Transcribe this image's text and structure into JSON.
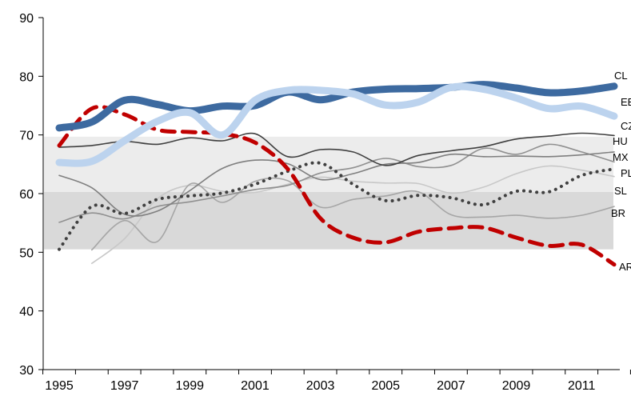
{
  "chart_data": {
    "type": "line",
    "title": "",
    "xlabel": "",
    "ylabel": "",
    "ylim": [
      30,
      90
    ],
    "y_ticks": [
      30,
      40,
      50,
      60,
      70,
      80,
      90
    ],
    "x_range": [
      1995,
      2012
    ],
    "x_tick_labels": [
      1995,
      1997,
      1999,
      2001,
      2003,
      2005,
      2007,
      2009,
      2011
    ],
    "grid": false,
    "bands": [
      {
        "from": 50.5,
        "to": 60.3,
        "color": "#d9d9d9"
      },
      {
        "from": 60.3,
        "to": 69.7,
        "color": "#ececec"
      }
    ],
    "series": [
      {
        "name": "CL",
        "color": "#3d6aa0",
        "style": "solid",
        "width": 9,
        "x": [
          1995,
          1996,
          1997,
          1998,
          1999,
          2000,
          2001,
          2002,
          2003,
          2004,
          2005,
          2006,
          2007,
          2008,
          2009,
          2010,
          2011,
          2012
        ],
        "y": [
          71.2,
          72.2,
          75.9,
          75.2,
          74.1,
          74.9,
          75.0,
          77.3,
          76.0,
          77.3,
          77.8,
          77.9,
          78.1,
          78.6,
          78.0,
          77.2,
          77.5,
          78.3
        ]
      },
      {
        "name": "EE",
        "color": "#bcd3ee",
        "style": "solid",
        "width": 9,
        "x": [
          1995,
          1996,
          1997,
          1998,
          1999,
          2000,
          2001,
          2002,
          2003,
          2004,
          2005,
          2006,
          2007,
          2008,
          2009,
          2010,
          2011,
          2012
        ],
        "y": [
          65.3,
          65.5,
          69.0,
          72.3,
          73.8,
          70.0,
          75.9,
          77.6,
          77.6,
          77.0,
          75.1,
          75.6,
          78.1,
          77.8,
          76.3,
          74.5,
          74.9,
          73.2
        ]
      },
      {
        "name": "AR",
        "color": "#c00000",
        "style": "dashed",
        "width": 5,
        "x": [
          1995,
          1996,
          1997,
          1998,
          1999,
          2000,
          2001,
          2002,
          2003,
          2004,
          2005,
          2006,
          2007,
          2008,
          2009,
          2010,
          2011,
          2012
        ],
        "y": [
          68.2,
          74.5,
          73.5,
          70.9,
          70.5,
          70.2,
          68.7,
          64.2,
          55.8,
          52.5,
          51.7,
          53.5,
          54.1,
          54.2,
          52.5,
          51.1,
          51.3,
          47.9
        ]
      },
      {
        "name": "SL",
        "color": "#404040",
        "style": "dotted",
        "width": 4,
        "x": [
          1995,
          1996,
          1997,
          1998,
          1999,
          2000,
          2001,
          2002,
          2003,
          2004,
          2005,
          2006,
          2007,
          2008,
          2009,
          2010,
          2011,
          2012
        ],
        "y": [
          50.5,
          57.8,
          56.6,
          59.0,
          59.6,
          60.1,
          61.6,
          63.8,
          65.2,
          61.6,
          58.8,
          59.7,
          59.3,
          58.1,
          60.4,
          60.3,
          63.1,
          64.2
        ]
      },
      {
        "name": "CZ",
        "color": "#404040",
        "style": "solid",
        "width": 1.6,
        "x": [
          1995,
          1996,
          1997,
          1998,
          1999,
          2000,
          2001,
          2002,
          2003,
          2004,
          2005,
          2006,
          2007,
          2008,
          2009,
          2010,
          2011,
          2012
        ],
        "y": [
          67.9,
          68.2,
          68.9,
          68.4,
          69.5,
          69.0,
          70.2,
          66.3,
          67.5,
          67.1,
          64.8,
          66.5,
          67.3,
          68.0,
          69.3,
          69.8,
          70.3,
          69.9
        ]
      },
      {
        "name": "HU",
        "color": "#7f7f7f",
        "style": "solid",
        "width": 1.6,
        "x": [
          1995,
          1996,
          1997,
          1998,
          1999,
          2000,
          2001,
          2002,
          2003,
          2004,
          2005,
          2006,
          2007,
          2008,
          2009,
          2010,
          2011,
          2012
        ],
        "y": [
          63.1,
          61.0,
          56.5,
          57.0,
          60.5,
          64.3,
          65.7,
          65.1,
          62.4,
          63.4,
          65.0,
          65.3,
          66.7,
          66.3,
          66.4,
          66.3,
          66.6,
          67.1
        ]
      },
      {
        "name": "MX",
        "color": "#909090",
        "style": "solid",
        "width": 1.6,
        "x": [
          1995,
          1996,
          1997,
          1998,
          1999,
          2000,
          2001,
          2002,
          2003,
          2004,
          2005,
          2006,
          2007,
          2008,
          2009,
          2010,
          2011,
          2012
        ],
        "y": [
          55.1,
          56.7,
          55.7,
          57.8,
          58.6,
          59.6,
          60.7,
          61.4,
          63.5,
          64.4,
          66.0,
          64.6,
          64.8,
          67.7,
          66.7,
          68.4,
          67.1,
          65.4
        ]
      },
      {
        "name": "PL",
        "color": "#c8c8c8",
        "style": "solid",
        "width": 1.6,
        "x": [
          1996,
          1997,
          1998,
          1999,
          2000,
          2001,
          2002,
          2003,
          2004,
          2005,
          2006,
          2007,
          2008,
          2009,
          2010,
          2011,
          2012
        ],
        "y": [
          48.1,
          52.3,
          59.1,
          61.4,
          60.4,
          60.2,
          61.6,
          62.8,
          62.1,
          61.8,
          61.7,
          60.1,
          61.1,
          63.4,
          64.7,
          64.0,
          62.9
        ]
      },
      {
        "name": "BR",
        "color": "#a6a6a6",
        "style": "solid",
        "width": 1.6,
        "x": [
          1996,
          1997,
          1998,
          1999,
          2000,
          2001,
          2002,
          2003,
          2004,
          2005,
          2006,
          2007,
          2008,
          2009,
          2010,
          2011,
          2012
        ],
        "y": [
          50.4,
          55.4,
          51.8,
          61.6,
          58.5,
          62.1,
          62.2,
          57.7,
          59.0,
          59.6,
          60.3,
          56.4,
          56.0,
          56.3,
          55.8,
          56.3,
          57.8
        ]
      }
    ]
  }
}
